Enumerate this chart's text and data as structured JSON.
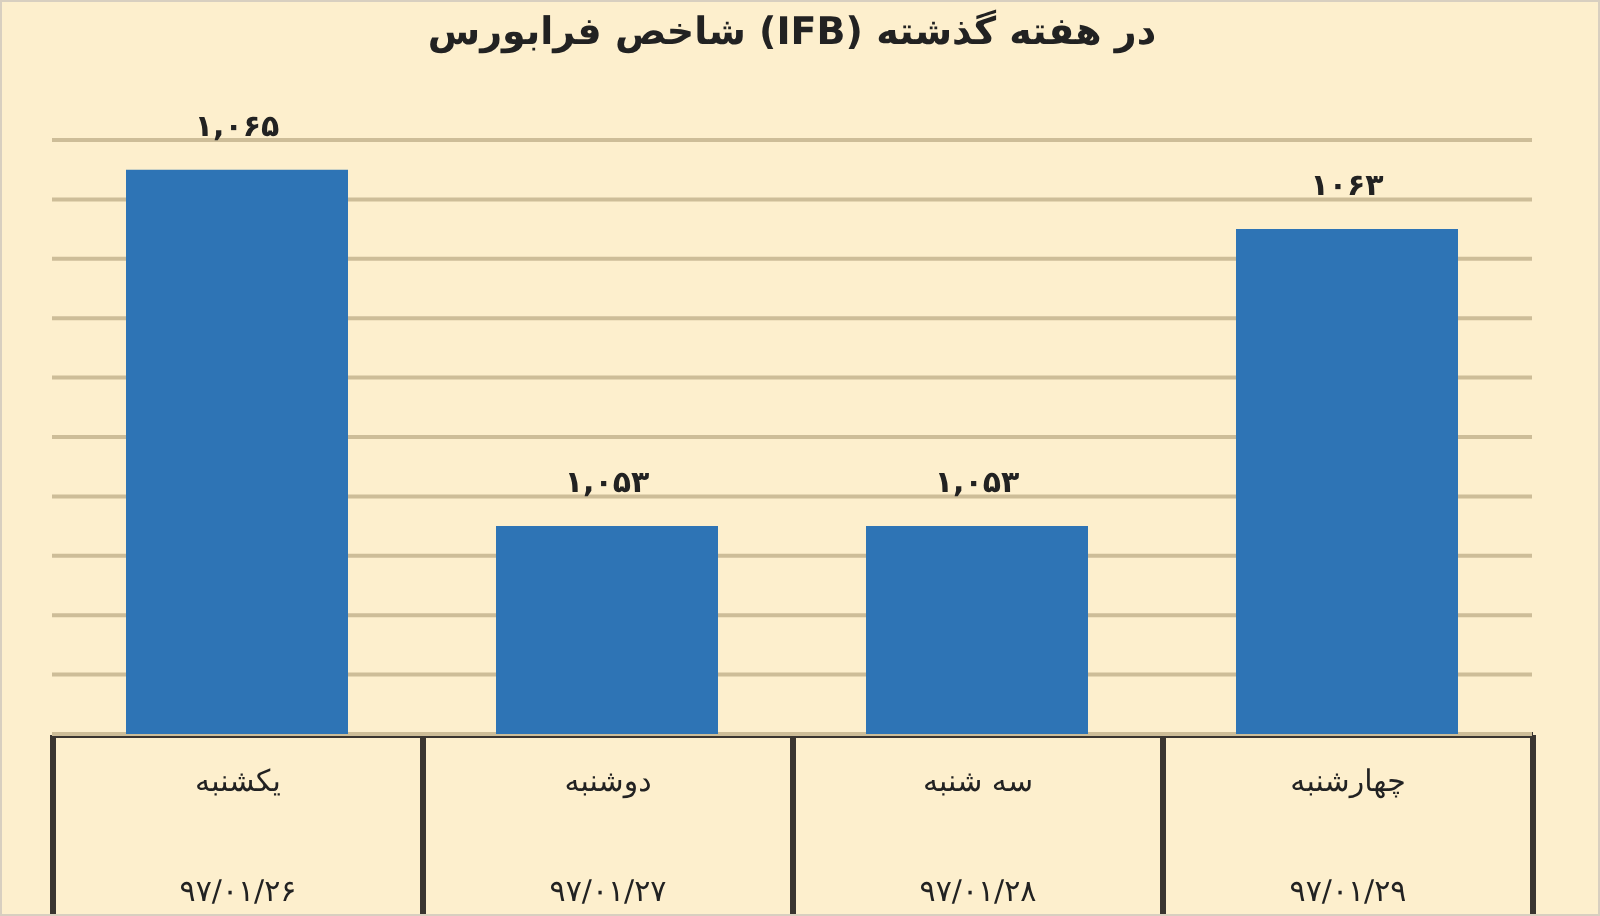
{
  "chart_data": {
    "type": "bar",
    "title": "شاخص فرابورس (IFB) در هفته گذشته",
    "categories": [
      "یکشنبه\n۹۷/۰۱/۲۶",
      "دوشنبه\n۹۷/۰۱/۲۷",
      "سه شنبه\n۹۷/۰۱/۲۸",
      "چهارشنبه\n۹۷/۰۱/۲۹"
    ],
    "values": [
      1065,
      1053,
      1053,
      1063
    ],
    "value_labels": [
      "۱,۰۶۵",
      "۱,۰۵۳",
      "۱,۰۵۳",
      "۱۰۶۳"
    ],
    "color": "#2e74b5",
    "ylim": [
      1046,
      1066
    ],
    "yticks": [
      {
        "value": 1046,
        "label": null
      },
      {
        "value": 1048,
        "label": null
      },
      {
        "value": 1050,
        "label": null
      },
      {
        "value": 1052,
        "label": null
      },
      {
        "value": 1054,
        "label": null
      },
      {
        "value": 1056,
        "label": null
      },
      {
        "value": 1058,
        "label": null
      },
      {
        "value": 1060,
        "label": null
      },
      {
        "value": 1062,
        "label": null
      },
      {
        "value": 1064,
        "label": null
      },
      {
        "value": 1066,
        "label": null
      }
    ],
    "grid": "y",
    "tick_labels": "x"
  }
}
